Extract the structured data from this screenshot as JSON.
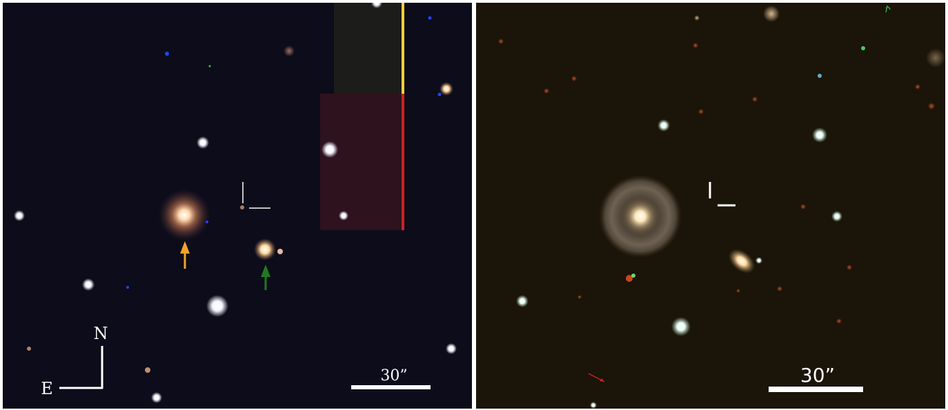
{
  "left_panel": {
    "north_label": "N",
    "east_label": "E",
    "scale_label": "30”",
    "colors": {
      "background": "#0c0c1a",
      "orange_arrow": "#f2a22a",
      "green_arrow": "#1f7a1f",
      "stripe_red": "#cc2222",
      "stripe_yellow": "#f5d23a"
    }
  },
  "right_panel": {
    "scale_label": "30”",
    "colors": {
      "background": "#1b1409"
    }
  }
}
